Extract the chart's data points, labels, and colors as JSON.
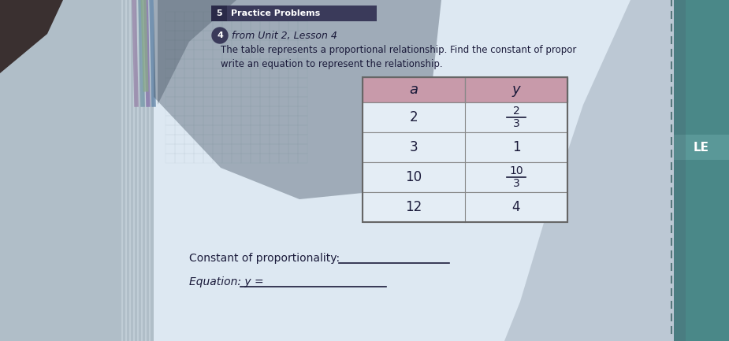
{
  "title_section": "Practice Problems",
  "title_num": "5",
  "lesson_label": "4",
  "lesson_text": "from Unit 2, Lesson 4",
  "description_line1": "The table represents a proportional relationship. Find the constant of propor",
  "description_line2": "write an equation to represent the relationship.",
  "col_headers": [
    "a",
    "y"
  ],
  "rows": [
    [
      "2",
      "2/3"
    ],
    [
      "3",
      "1"
    ],
    [
      "10",
      "10/3"
    ],
    [
      "12",
      "4"
    ]
  ],
  "footer_line1": "Constant of proportionality:",
  "footer_line2": "Equation: y =",
  "page_bg": "#ccd9e5",
  "left_dark_bg": "#6a7a8a",
  "white_page": "#e8eef5",
  "right_teal": "#4a9090",
  "table_header_color": "#c89aaa",
  "table_row_color": "#e4edf5",
  "table_border_color": "#888888",
  "title_bg": "#3a3a5a",
  "title_text_color": "#ffffff",
  "lesson_circle_bg": "#3a3a5a",
  "text_color": "#1a1a3a",
  "shadow_dark": "#3a4a5a",
  "le_bg": "#5a9090",
  "le_text": "#ffffff"
}
